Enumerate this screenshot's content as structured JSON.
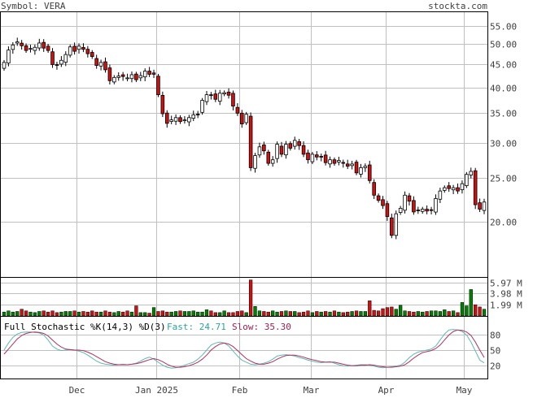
{
  "header": {
    "symbol_label": "Symbol: VERA",
    "site_label": "stockta.com"
  },
  "colors": {
    "background": "#ffffff",
    "grid": "#c0c0c0",
    "frame": "#000000",
    "up_candle": "#ffffff",
    "down_candle": "#d01010",
    "up_volume": "#008000",
    "down_volume": "#d01010",
    "fast_line": "#5fb8b0",
    "slow_line": "#b03060",
    "label_text": "#404040",
    "fast_text": "#30a0a0",
    "slow_text": "#a02050"
  },
  "chart_data": [
    {
      "type": "candlestick",
      "name": "price",
      "y_axis_ticks": [
        "55.00",
        "50.00",
        "45.00",
        "40.00",
        "35.00",
        "30.00",
        "25.00",
        "20.00"
      ],
      "ylim": [
        15,
        59
      ],
      "y_scale": "log",
      "x_axis_labels": [
        {
          "label": "Dec",
          "date": "2024-12-02"
        },
        {
          "label": "Jan 2025",
          "date": "2025-01-02"
        },
        {
          "label": "Feb",
          "date": "2025-02-03"
        },
        {
          "label": "Mar",
          "date": "2025-03-03"
        },
        {
          "label": "Apr",
          "date": "2025-04-01"
        },
        {
          "label": "May",
          "date": "2025-05-01"
        }
      ],
      "grid": true,
      "closes": [
        45.5,
        48.5,
        49.8,
        50.6,
        49.6,
        48.4,
        48.9,
        49.2,
        50.3,
        49.0,
        48.4,
        45.0,
        44.8,
        46.0,
        47.4,
        49.3,
        48.2,
        49.5,
        48.7,
        47.6,
        46.9,
        44.8,
        45.5,
        43.8,
        41.4,
        42.1,
        42.4,
        42.3,
        42.0,
        42.7,
        41.6,
        42.5,
        43.5,
        42.8,
        42.8,
        38.5,
        34.9,
        33.2,
        33.8,
        34.2,
        33.5,
        33.8,
        34.2,
        34.7,
        34.8,
        37.4,
        38.5,
        38.4,
        37.6,
        38.8,
        38.9,
        38.4,
        36.3,
        35.0,
        33.1,
        34.8,
        26.4,
        28.1,
        29.4,
        28.8,
        27.0,
        27.5,
        29.8,
        28.3,
        29.8,
        29.2,
        30.4,
        29.6,
        28.3,
        27.5,
        28.3,
        27.9,
        27.9,
        27.1,
        27.5,
        27.0,
        27.4,
        27.0,
        26.6,
        26.9,
        25.7,
        26.4,
        26.6,
        24.7,
        22.9,
        22.3,
        21.7,
        20.5,
        18.6,
        20.8,
        21.4,
        22.9,
        22.2,
        21.0,
        21.2,
        21.3,
        21.1,
        21.2,
        22.5,
        23.4,
        23.8,
        23.7,
        23.8,
        23.4,
        24.3,
        25.5,
        25.9,
        21.8,
        21.3,
        22.1
      ],
      "note": "One candle per trading day from early November 2024 to early May 2025; red = close below open."
    },
    {
      "type": "bar",
      "name": "volume",
      "y_axis_ticks": [
        "5.97 M",
        "3.98 M",
        "1.99 M"
      ],
      "ylim": [
        0,
        6.5
      ],
      "unit": "M",
      "values": [
        0.7,
        0.9,
        0.7,
        0.8,
        1.2,
        0.9,
        0.7,
        0.6,
        0.8,
        0.9,
        0.7,
        0.9,
        0.6,
        0.7,
        0.8,
        0.8,
        0.9,
        0.7,
        0.8,
        0.7,
        0.9,
        0.7,
        0.7,
        0.9,
        0.7,
        0.6,
        0.8,
        0.7,
        0.9,
        0.7,
        1.8,
        0.6,
        0.6,
        0.5,
        1.5,
        0.8,
        0.9,
        0.7,
        0.7,
        0.8,
        0.9,
        0.8,
        0.8,
        0.9,
        0.7,
        0.7,
        1.1,
        0.9,
        0.6,
        0.6,
        0.9,
        0.6,
        0.6,
        0.8,
        0.9,
        0.6,
        6.4,
        1.7,
        0.9,
        0.8,
        0.7,
        0.9,
        0.7,
        0.8,
        0.9,
        0.8,
        0.8,
        0.6,
        0.7,
        0.9,
        0.6,
        0.8,
        0.7,
        0.8,
        0.7,
        0.9,
        0.7,
        0.6,
        0.7,
        0.8,
        0.9,
        0.8,
        0.8,
        2.7,
        1.0,
        0.9,
        1.3,
        1.5,
        1.6,
        1.2,
        1.9,
        0.9,
        0.8,
        0.7,
        0.8,
        0.7,
        0.8,
        0.9,
        0.9,
        0.8,
        1.1,
        0.8,
        0.9,
        0.6,
        2.4,
        1.8,
        4.7,
        2.0,
        1.6,
        1.2
      ]
    },
    {
      "type": "line",
      "name": "stochastic",
      "title": "Full Stochastic %K(14,3) %D(3)",
      "fast_label": "Fast: 24.71",
      "slow_label": "Slow: 35.30",
      "y_axis_ticks": [
        "80",
        "50",
        "20"
      ],
      "ylim": [
        0,
        100
      ],
      "series": [
        {
          "name": "Fast",
          "values": [
            50,
            64,
            75,
            82,
            85,
            86,
            86,
            85,
            84,
            80,
            70,
            58,
            52,
            49,
            50,
            51,
            50,
            48,
            45,
            40,
            34,
            28,
            24,
            22,
            21,
            20,
            21,
            22,
            21,
            22,
            24,
            28,
            33,
            36,
            32,
            26,
            20,
            16,
            14,
            15,
            17,
            20,
            23,
            26,
            32,
            40,
            50,
            60,
            64,
            66,
            64,
            58,
            48,
            38,
            30,
            26,
            22,
            21,
            22,
            24,
            27,
            32,
            38,
            40,
            41,
            40,
            38,
            35,
            33,
            30,
            28,
            26,
            25,
            26,
            27,
            24,
            21,
            19,
            18,
            19,
            20,
            21,
            21,
            20,
            18,
            16,
            15,
            16,
            17,
            18,
            20,
            26,
            35,
            42,
            46,
            48,
            50,
            52,
            58,
            70,
            82,
            90,
            91,
            90,
            87,
            80,
            66,
            48,
            30,
            24.71
          ]
        },
        {
          "name": "Slow",
          "values": [
            42,
            52,
            62,
            72,
            79,
            83,
            85,
            86,
            85,
            83,
            78,
            70,
            62,
            56,
            52,
            51,
            50,
            50,
            49,
            46,
            42,
            37,
            32,
            27,
            24,
            22,
            21,
            21,
            21,
            22,
            23,
            25,
            28,
            31,
            33,
            31,
            27,
            22,
            18,
            16,
            16,
            17,
            19,
            22,
            26,
            32,
            40,
            50,
            57,
            62,
            64,
            62,
            57,
            49,
            41,
            33,
            28,
            24,
            22,
            22,
            24,
            27,
            32,
            36,
            39,
            40,
            40,
            38,
            36,
            33,
            31,
            29,
            27,
            26,
            26,
            26,
            24,
            22,
            20,
            19,
            19,
            20,
            20,
            21,
            20,
            18,
            17,
            16,
            16,
            17,
            18,
            21,
            27,
            34,
            40,
            45,
            47,
            49,
            53,
            60,
            70,
            80,
            87,
            90,
            89,
            86,
            79,
            66,
            50,
            35.3
          ]
        }
      ]
    }
  ]
}
